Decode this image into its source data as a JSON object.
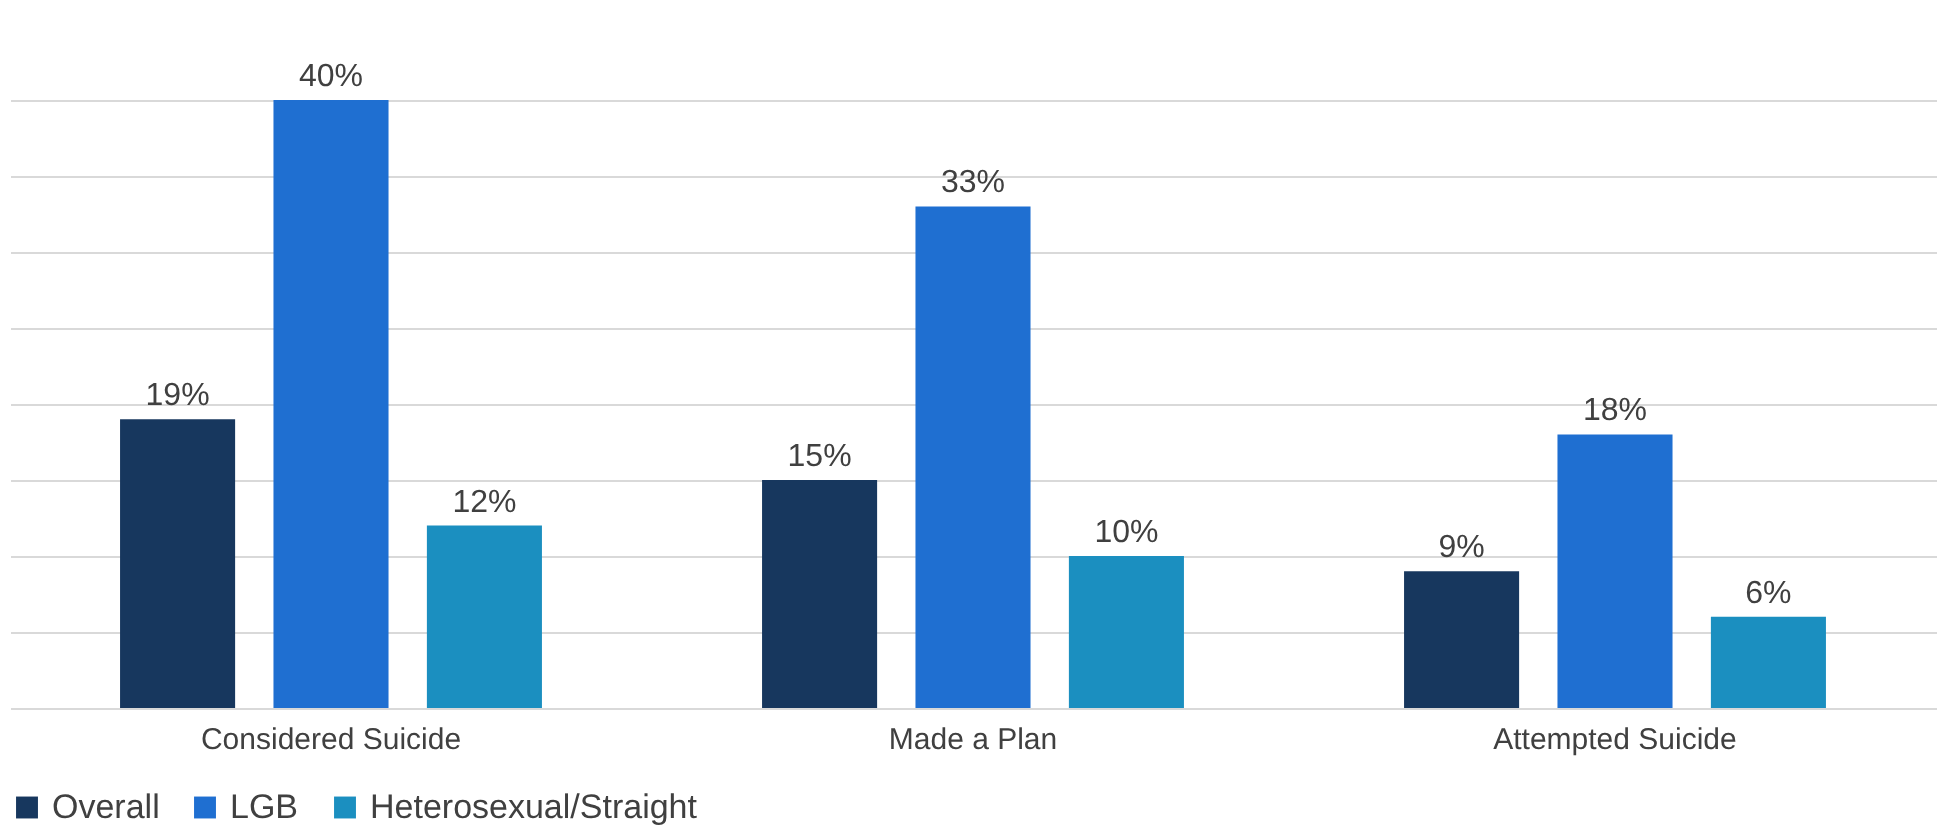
{
  "chart_data": {
    "type": "bar",
    "categories": [
      "Considered Suicide",
      "Made a Plan",
      "Attempted Suicide"
    ],
    "series": [
      {
        "name": "Overall",
        "color": "#17375e",
        "values": [
          19,
          15,
          9
        ],
        "value_labels": [
          "19%",
          "15%",
          "9%"
        ]
      },
      {
        "name": "LGB",
        "color": "#1f6fd1",
        "values": [
          40,
          33,
          18
        ],
        "value_labels": [
          "40%",
          "33%",
          "18%"
        ]
      },
      {
        "name": "Heterosexual/Straight",
        "color": "#1b8fc0",
        "values": [
          12,
          10,
          6
        ],
        "value_labels": [
          "12%",
          "10%",
          "6%"
        ]
      }
    ],
    "grid": "y",
    "legend": "bottom",
    "tick_labels": "x"
  }
}
